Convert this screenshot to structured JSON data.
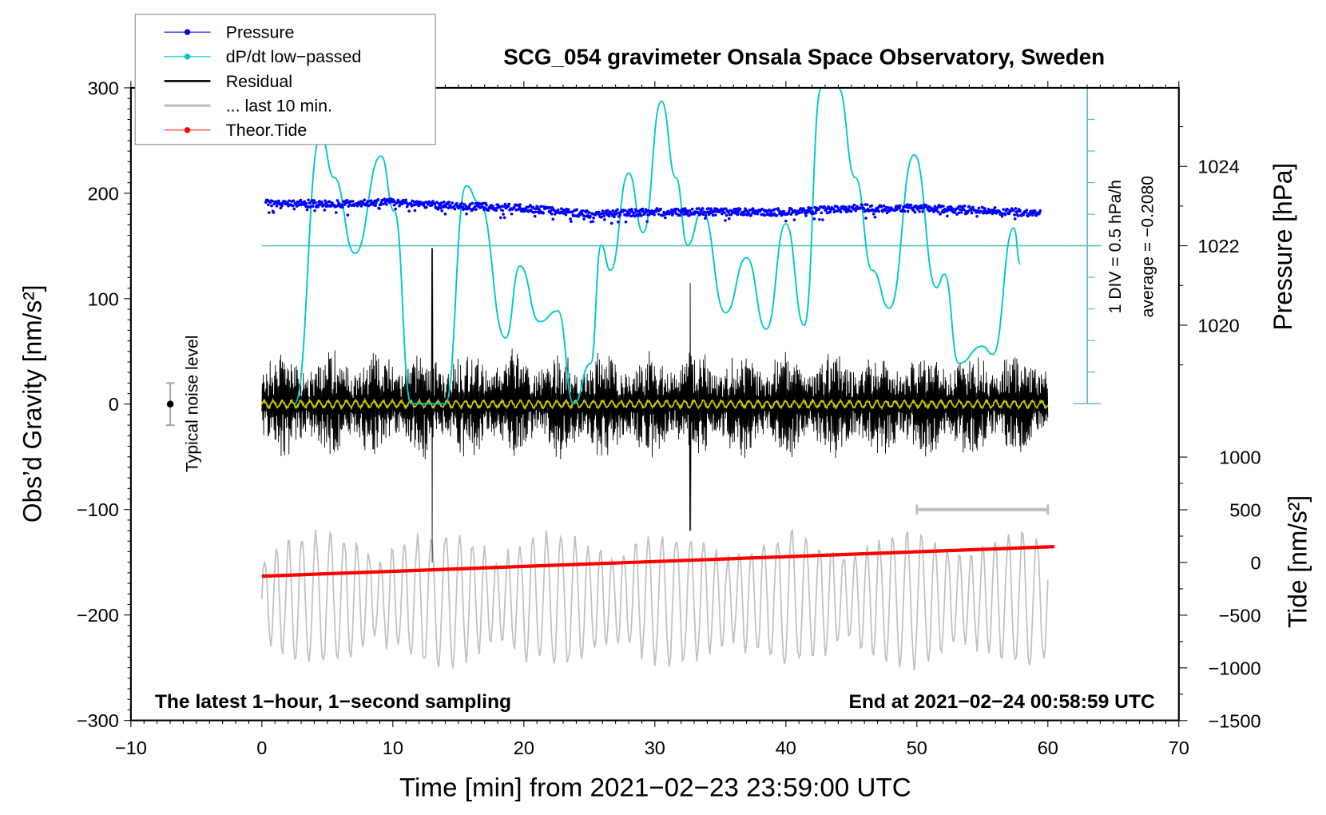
{
  "chart_data": {
    "type": "line",
    "title": "SCG_054 gravimeter Onsala Space Observatory, Sweden",
    "xlabel": "Time [min] from 2021−02−23 23:59:00 UTC",
    "ylabel_left": "Obs’d Gravity [nm/s²]",
    "ylabel_right_pressure": "Pressure [hPa]",
    "ylabel_right_tide": "Tide [nm/s²]",
    "xlim": [
      -10,
      70
    ],
    "ylim_left": [
      -300,
      300
    ],
    "xticks": [
      "−10",
      "0",
      "10",
      "20",
      "30",
      "40",
      "50",
      "60",
      "70"
    ],
    "yticks_left": [
      "300",
      "200",
      "100",
      "0",
      "−100",
      "−200",
      "−300"
    ],
    "pressure_ticks": [
      "1024",
      "1022",
      "1020"
    ],
    "tide_ticks": [
      "1000",
      "500",
      "0",
      "−500",
      "−1000",
      "−1500"
    ],
    "legend": {
      "placement": "top-left",
      "entries": [
        "Pressure",
        "dP/dt low−passed",
        "Residual",
        "... last 10 min.",
        "Theor.Tide"
      ]
    },
    "annotations": {
      "noise": "Typical noise level",
      "div": "1 DIV = 0.5 hPa/h",
      "average": "average = −0.2080",
      "bottom_left": "The latest 1−hour, 1−second sampling",
      "bottom_right": "End at 2021−02−24 00:58:59 UTC"
    },
    "noise_level": 20,
    "dpdt_units_per_div": 0.5,
    "dpdt_average": -0.208,
    "series": [
      {
        "name": "Pressure",
        "unit": "hPa",
        "color": "#0000ff",
        "x": [
          0,
          5,
          10,
          15,
          20,
          25,
          30,
          35,
          40,
          45,
          50,
          55,
          60
        ],
        "y": [
          1023.1,
          1023.05,
          1023.1,
          1023.0,
          1022.95,
          1022.8,
          1022.85,
          1022.85,
          1022.85,
          1022.95,
          1022.95,
          1022.9,
          1022.8
        ]
      },
      {
        "name": "dP/dt low-passed",
        "unit": "hPa/h",
        "color": "#00c8c8",
        "x": [
          2.5,
          4.5,
          5.5,
          7.1,
          9.1,
          10.1,
          11.4,
          14.0,
          15.6,
          16.6,
          18.6,
          19.7,
          21.2,
          22.6,
          23.8,
          25.1,
          25.9,
          26.6,
          28.0,
          29.1,
          30.5,
          31.6,
          32.5,
          33.6,
          35.4,
          37.0,
          38.5,
          40.0,
          41.4,
          42.7,
          44.0,
          45.3,
          46.6,
          47.9,
          49.8,
          51.5,
          52.1,
          53.2,
          55.0,
          55.8,
          57.4,
          57.9
        ],
        "y": [
          -2.5,
          1.75,
          1.08,
          -0.12,
          1.42,
          0.55,
          -2.5,
          -2.5,
          0.95,
          0.68,
          -1.46,
          -0.32,
          -1.2,
          -1.03,
          -2.5,
          -1.86,
          0.01,
          -0.39,
          1.15,
          0.21,
          2.29,
          1.08,
          0.01,
          0.55,
          -1.06,
          -0.19,
          -1.32,
          0.35,
          -1.26,
          2.55,
          2.55,
          1.08,
          -0.39,
          -0.99,
          1.44,
          -0.66,
          -0.45,
          -1.86,
          -1.59,
          -1.72,
          0.28,
          -0.29
        ]
      },
      {
        "name": "Residual",
        "unit": "nm/s2",
        "color": "#000000",
        "x_range": [
          0,
          60
        ],
        "typical_amplitude": 45,
        "spikes": [
          {
            "x": 13.0,
            "max": 148,
            "min": -150
          },
          {
            "x": 32.7,
            "max": 115,
            "min": -120
          }
        ]
      },
      {
        "name": "... last 10 min.",
        "unit": "nm/s2",
        "color": "#c0c0c0",
        "x_range": [
          50,
          60
        ],
        "offset": -185,
        "typical_amplitude": 55
      },
      {
        "name": "Theor.Tide",
        "unit": "nm/s2",
        "color": "#ff0000",
        "x": [
          0,
          60
        ],
        "y": [
          -130,
          150
        ]
      }
    ],
    "last10_bar": {
      "x": [
        50,
        60
      ],
      "y": -100
    }
  }
}
